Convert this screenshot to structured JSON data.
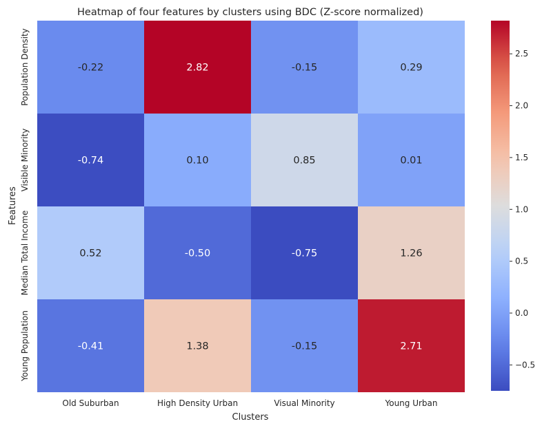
{
  "chart_data": {
    "type": "heatmap",
    "title": "Heatmap of four features by clusters using BDC (Z-score normalized)",
    "xlabel": "Clusters",
    "ylabel": "Features",
    "x_categories": [
      "Old Suburban",
      "High Density Urban",
      "Visual Minority",
      "Young Urban"
    ],
    "y_categories": [
      "Population Density",
      "Visible Minority",
      "Median Total Income",
      "Young Population"
    ],
    "values": [
      [
        -0.22,
        2.82,
        -0.15,
        0.29
      ],
      [
        -0.74,
        0.1,
        0.85,
        0.01
      ],
      [
        0.52,
        -0.5,
        -0.75,
        1.26
      ],
      [
        -0.41,
        1.38,
        -0.15,
        2.71
      ]
    ],
    "value_labels": [
      [
        "-0.22",
        "2.82",
        "-0.15",
        "0.29"
      ],
      [
        "-0.74",
        "0.10",
        "0.85",
        "0.01"
      ],
      [
        "0.52",
        "-0.50",
        "-0.75",
        "1.26"
      ],
      [
        "-0.41",
        "1.38",
        "-0.15",
        "2.71"
      ]
    ],
    "colormap": "coolwarm",
    "color_range": [
      -0.75,
      2.82
    ],
    "colorbar_ticks": [
      2.5,
      2.0,
      1.5,
      1.0,
      0.5,
      0.0,
      -0.5
    ],
    "colorbar_tick_labels": [
      "2.5",
      "2.0",
      "1.5",
      "1.0",
      "0.5",
      "0.0",
      "−0.5"
    ],
    "grid": false,
    "legend": "colorbar-right"
  }
}
